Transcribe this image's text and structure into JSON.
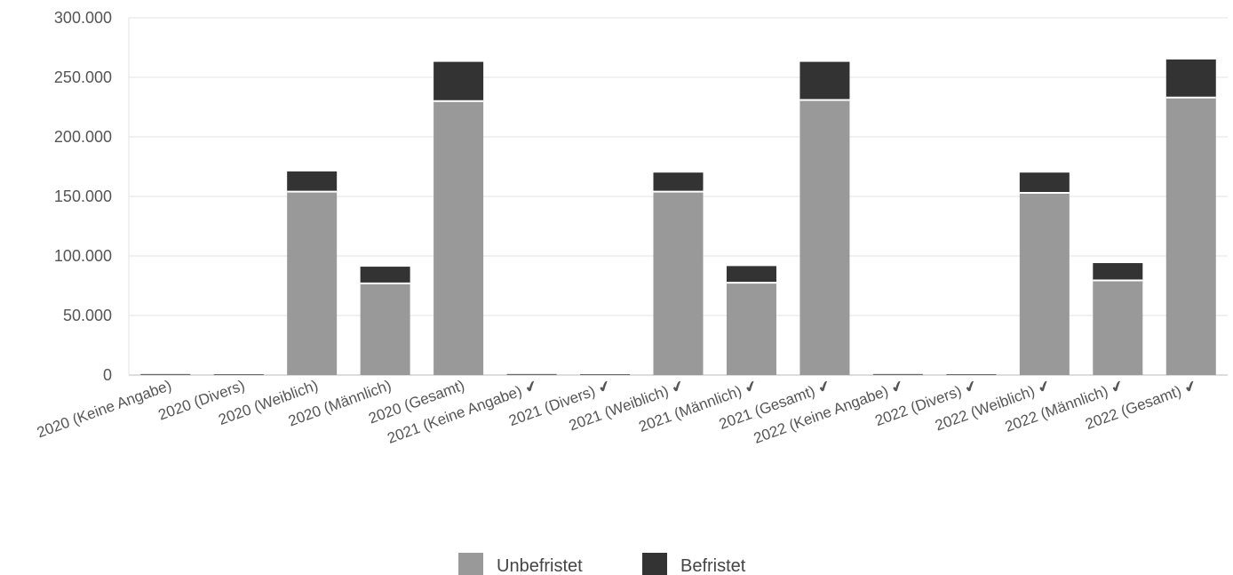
{
  "chart_data": {
    "type": "bar",
    "stacked": true,
    "categories": [
      "2020 (Keine Angabe)",
      "2020 (Divers)",
      "2020 (Weiblich)",
      "2020 (Männlich)",
      "2020 (Gesamt)",
      "2021 (Keine Angabe) ✔",
      "2021 (Divers) ✔",
      "2021 (Weiblich) ✔",
      "2021 (Männlich) ✔",
      "2021 (Gesamt)  ✔",
      "2022 (Keine Angabe) ✔",
      "2022 (Divers) ✔",
      "2022 (Weiblich) ✔",
      "2022 (Männlich) ✔",
      "2022 (Gesamt) ✔"
    ],
    "series": [
      {
        "name": "Unbefristet",
        "color": "#999999",
        "values": [
          400,
          200,
          154000,
          77000,
          230000,
          400,
          200,
          154000,
          77500,
          231000,
          400,
          200,
          153000,
          79500,
          233000
        ]
      },
      {
        "name": "Befristet",
        "color": "#333333",
        "values": [
          100,
          50,
          17000,
          14000,
          33000,
          100,
          50,
          16000,
          14000,
          32000,
          100,
          50,
          17000,
          14500,
          32000
        ]
      }
    ],
    "yticks": [
      "300.000",
      "250.000",
      "200.000",
      "150.000",
      "100.000",
      "50.000",
      "0"
    ],
    "ytick_values": [
      300000,
      250000,
      200000,
      150000,
      100000,
      50000,
      0
    ],
    "ylim": [
      0,
      300000
    ],
    "grid": true,
    "legend_position": "bottom-center",
    "title": "",
    "xlabel": "",
    "ylabel": ""
  }
}
